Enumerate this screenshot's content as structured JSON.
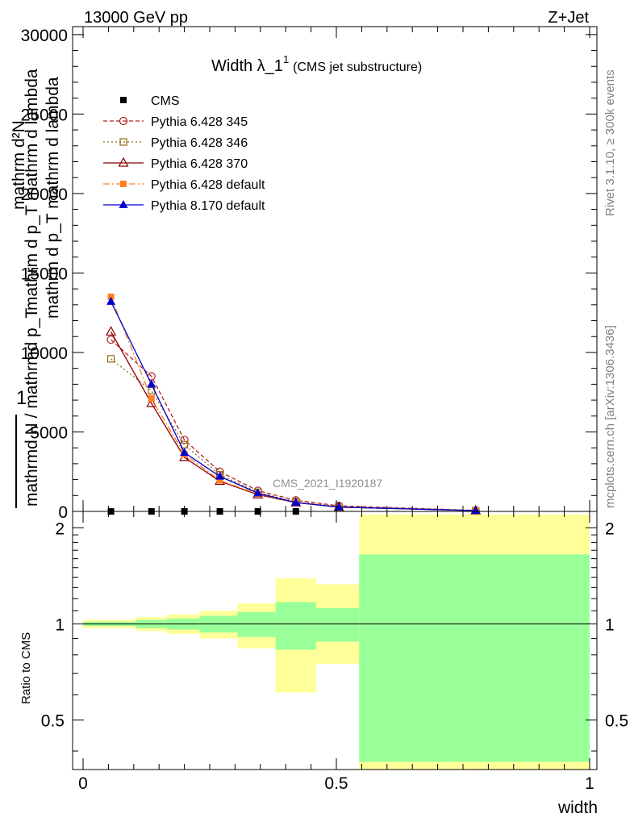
{
  "header": {
    "left": "13000 GeV pp",
    "right": "Z+Jet"
  },
  "title": {
    "main": "Width λ_1",
    "sup": "1",
    "sub": "(CMS jet substructure)"
  },
  "watermark": "CMS_2021_I1920187",
  "side_labels": {
    "rivet": "Rivet 3.1.10, ≥ 300k events",
    "mcplots": "mcplots.cern.ch [arXiv:1306.3436]"
  },
  "ylabel_upper": {
    "one": "1",
    "numerator": "mathrm d²N",
    "numerator2": "mathrm d p_T mathrm d lambda",
    "denominator": "mathrmd N / mathrmd p_T",
    "extra": "mathrm d p_T mathrm d lambda"
  },
  "ylabel_lower": "Ratio to CMS",
  "xlabel": "width",
  "chart_data": [
    {
      "type": "line",
      "panel": "main",
      "xlim": [
        -0.02,
        1.02
      ],
      "ylim": [
        0,
        30500
      ],
      "yticks": [
        0,
        5000,
        10000,
        15000,
        20000,
        25000,
        30000
      ],
      "ytick_labels": [
        "0",
        "5000",
        "10000",
        "15000",
        "20000",
        "25000",
        "30000"
      ],
      "legend_position": "top-left",
      "series": [
        {
          "name": "CMS",
          "color": "#000000",
          "marker": "square-filled",
          "x": [
            0.055,
            0.135,
            0.2,
            0.27,
            0.345,
            0.42
          ],
          "y": [
            0,
            0,
            0,
            0,
            0,
            0
          ]
        },
        {
          "name": "Pythia 6.428 345",
          "color": "#b22222",
          "marker": "circle-open",
          "dash": "5,3",
          "x": [
            0.055,
            0.135,
            0.2,
            0.27,
            0.345,
            0.42,
            0.505,
            0.775
          ],
          "y": [
            10800,
            8500,
            4500,
            2500,
            1300,
            700,
            350,
            60
          ]
        },
        {
          "name": "Pythia 6.428 346",
          "color": "#8b6914",
          "marker": "square-open",
          "dash": "2,3",
          "x": [
            0.055,
            0.135,
            0.2,
            0.27,
            0.345,
            0.42,
            0.505,
            0.775
          ],
          "y": [
            9600,
            7600,
            4200,
            2300,
            1200,
            600,
            300,
            50
          ]
        },
        {
          "name": "Pythia 6.428 370",
          "color": "#8b0000",
          "marker": "triangle-open",
          "dash": "",
          "x": [
            0.055,
            0.135,
            0.2,
            0.27,
            0.345,
            0.42,
            0.505,
            0.775
          ],
          "y": [
            11300,
            6800,
            3400,
            1900,
            1050,
            550,
            270,
            50
          ]
        },
        {
          "name": "Pythia 6.428 default",
          "color": "#ff7f24",
          "marker": "square-filled",
          "dash": "8,3,2,3",
          "x": [
            0.055,
            0.135,
            0.2,
            0.27,
            0.345,
            0.42,
            0.505,
            0.775
          ],
          "y": [
            13500,
            7100,
            3600,
            1950,
            1100,
            560,
            270,
            50
          ]
        },
        {
          "name": "Pythia 8.170 default",
          "color": "#0000cd",
          "marker": "triangle-filled",
          "dash": "",
          "x": [
            0.055,
            0.135,
            0.2,
            0.27,
            0.345,
            0.42,
            0.505,
            0.775
          ],
          "y": [
            13200,
            8000,
            3700,
            2200,
            1150,
            560,
            270,
            50
          ]
        }
      ]
    },
    {
      "type": "area",
      "panel": "ratio",
      "xlim": [
        -0.02,
        1.02
      ],
      "ylim": [
        0.35,
        2.25
      ],
      "yticks": [
        0.5,
        1,
        2
      ],
      "ytick_labels": [
        "0.5",
        "1",
        "2"
      ],
      "xticks": [
        0,
        0.5,
        1
      ],
      "xtick_labels": [
        "0",
        "0.5",
        "1"
      ],
      "colors": {
        "outer": "#ffff99",
        "inner": "#99ff99",
        "line": "#000000"
      },
      "bins": [
        {
          "x0": 0.0,
          "x1": 0.105,
          "outer": [
            0.97,
            1.03
          ],
          "inner": [
            0.985,
            1.015
          ]
        },
        {
          "x0": 0.105,
          "x1": 0.165,
          "outer": [
            0.95,
            1.05
          ],
          "inner": [
            0.97,
            1.03
          ]
        },
        {
          "x0": 0.165,
          "x1": 0.23,
          "outer": [
            0.93,
            1.07
          ],
          "inner": [
            0.96,
            1.04
          ]
        },
        {
          "x0": 0.23,
          "x1": 0.305,
          "outer": [
            0.9,
            1.1
          ],
          "inner": [
            0.94,
            1.06
          ]
        },
        {
          "x0": 0.305,
          "x1": 0.38,
          "outer": [
            0.84,
            1.16
          ],
          "inner": [
            0.91,
            1.09
          ]
        },
        {
          "x0": 0.38,
          "x1": 0.46,
          "outer": [
            0.61,
            1.39
          ],
          "inner": [
            0.83,
            1.17
          ]
        },
        {
          "x0": 0.46,
          "x1": 0.545,
          "outer": [
            0.75,
            1.33
          ],
          "inner": [
            0.88,
            1.12
          ]
        },
        {
          "x0": 0.545,
          "x1": 1.0,
          "outer": [
            0.35,
            2.2
          ],
          "inner": [
            0.37,
            1.65
          ]
        }
      ]
    }
  ]
}
